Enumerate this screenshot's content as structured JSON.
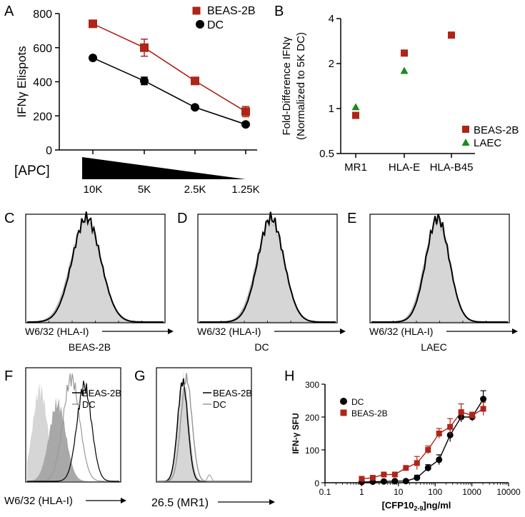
{
  "figure": {
    "colors": {
      "beas": "#b02418",
      "dc": "#000000",
      "laec": "#1a8a1a",
      "fill": "#d6d6d6",
      "dark_fill": "#a8a8a8",
      "grey_line": "#999999"
    }
  },
  "chart_data": [
    {
      "panel": "A",
      "type": "line",
      "ylabel": "IFNγ Elispots",
      "categories": [
        "10K",
        "5K",
        "2.5K",
        "1.25K"
      ],
      "xlabel": "[APC]",
      "ylim": [
        0,
        800
      ],
      "yticks": [
        0,
        200,
        400,
        600,
        800
      ],
      "series": [
        {
          "name": "BEAS-2B",
          "values": [
            740,
            600,
            405,
            225
          ],
          "errors": [
            0,
            50,
            0,
            30
          ]
        },
        {
          "name": "DC",
          "values": [
            540,
            405,
            250,
            150
          ],
          "errors": [
            0,
            22,
            0,
            0
          ]
        }
      ]
    },
    {
      "panel": "B",
      "type": "scatter",
      "ylabel": "Fold-Difference IFNγ",
      "ylabel2": "(Normalized to 5K DC)",
      "yscale": "log2",
      "ylim": [
        0.5,
        4
      ],
      "yticks": [
        "0.5",
        "1",
        "2",
        "4"
      ],
      "categories": [
        "MR1",
        "HLA-E",
        "HLA-B45"
      ],
      "series": [
        {
          "name": "BEAS-2B",
          "values": [
            0.9,
            2.35,
            3.1
          ]
        },
        {
          "name": "LAEC",
          "values": [
            1.03,
            1.8,
            null
          ]
        }
      ]
    },
    {
      "panel": "C",
      "type": "histogram",
      "xlabel": "W6/32 (HLA-I)",
      "sample": "BEAS-2B"
    },
    {
      "panel": "D",
      "type": "histogram",
      "xlabel": "W6/32 (HLA-I)",
      "sample": "DC"
    },
    {
      "panel": "E",
      "type": "histogram",
      "xlabel": "W6/32 (HLA-I)",
      "sample": "LAEC"
    },
    {
      "panel": "F",
      "type": "histogram",
      "xlabel": "W6/32 (HLA-I)",
      "legend": [
        "BEAS-2B",
        "DC"
      ]
    },
    {
      "panel": "G",
      "type": "histogram",
      "xlabel": "26.5 (MR1)",
      "legend": [
        "BEAS-2B",
        "DC"
      ]
    },
    {
      "panel": "H",
      "type": "line",
      "xscale": "log",
      "xlabel_main": "[CFP10",
      "xlabel_sub": "2-9",
      "xlabel_tail": "]ng/ml",
      "ylabel": "IFN-γ SFU",
      "ylim": [
        0,
        300
      ],
      "yticks": [
        0,
        100,
        200,
        300
      ],
      "xticks": [
        "0.1",
        "1",
        "10",
        "100",
        "1000",
        "10000"
      ],
      "series": [
        {
          "name": "DC",
          "x": [
            1,
            2,
            4,
            8,
            16,
            32,
            64,
            128,
            256,
            512,
            1024,
            2048
          ],
          "values": [
            2,
            3,
            4,
            5,
            5,
            15,
            45,
            70,
            145,
            200,
            200,
            255
          ],
          "errors": [
            0,
            0,
            0,
            0,
            0,
            8,
            10,
            15,
            20,
            15,
            12,
            25
          ]
        },
        {
          "name": "BEAS-2B",
          "x": [
            1,
            2,
            4,
            8,
            16,
            32,
            64,
            128,
            256,
            512,
            1024,
            2048
          ],
          "values": [
            12,
            15,
            25,
            25,
            45,
            60,
            100,
            150,
            170,
            215,
            205,
            225
          ],
          "errors": [
            0,
            0,
            0,
            0,
            0,
            20,
            12,
            15,
            25,
            25,
            10,
            20
          ]
        }
      ]
    }
  ]
}
